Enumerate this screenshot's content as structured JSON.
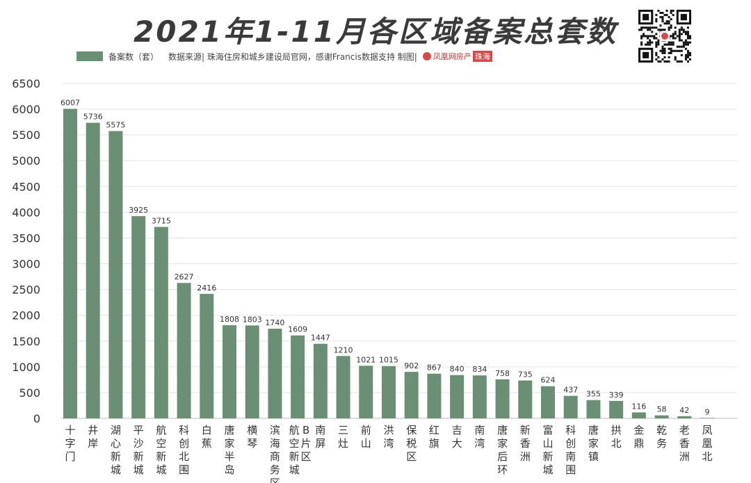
{
  "header": {
    "title": "2021年1-11月各区域备案总套数",
    "legend_series": "备案数（套）",
    "source": "数据来源| 珠海住房和城乡建设局官网，感谢Francis数据支持  制图|",
    "brand": "凤凰网房产",
    "brand_city": "珠海"
  },
  "colors": {
    "bar": "#6a8f74",
    "grid": "#e3e3e3",
    "axis": "#bbbbbb"
  },
  "chart_data": {
    "type": "bar",
    "title": "2021年1-11月各区域备案总套数",
    "xlabel": "",
    "ylabel": "",
    "ylim": [
      0,
      6500
    ],
    "yticks": [
      0,
      500,
      1000,
      1500,
      2000,
      2500,
      3000,
      3500,
      4000,
      4500,
      5000,
      5500,
      6000,
      6500
    ],
    "grid": true,
    "legend_position": "top-left",
    "categories": [
      "十字门",
      "井岸",
      "湖心新城",
      "平沙新城",
      "航空新城",
      "科创北围",
      "白蕉",
      "唐家半岛",
      "横琴",
      "滨海商务区",
      "航空新城B片区",
      "南屏",
      "三灶",
      "前山",
      "洪湾",
      "保税区",
      "红旗",
      "吉大",
      "南湾",
      "唐家后环",
      "新香洲",
      "富山新城",
      "科创南围",
      "唐家镇",
      "拱北",
      "金鼎",
      "乾务",
      "老香洲",
      "凤凰北"
    ],
    "series": [
      {
        "name": "备案数（套）",
        "values": [
          6007,
          5736,
          5575,
          3925,
          3715,
          2627,
          2416,
          1808,
          1803,
          1740,
          1609,
          1447,
          1210,
          1021,
          1015,
          902,
          867,
          840,
          834,
          758,
          735,
          624,
          437,
          355,
          339,
          116,
          58,
          42,
          9
        ]
      }
    ]
  }
}
